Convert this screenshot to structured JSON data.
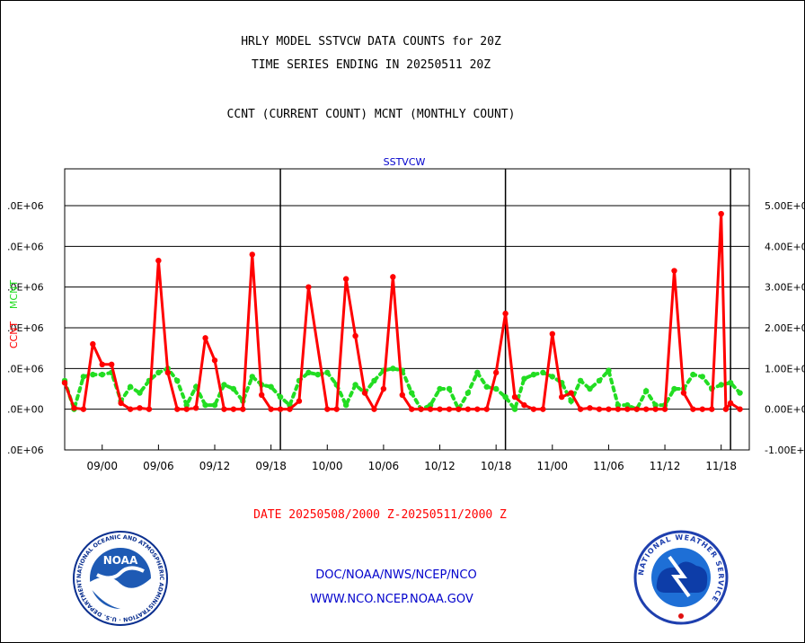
{
  "header": {
    "line1": "HRLY MODEL SSTVCW DATA COUNTS for 20Z",
    "line2": "TIME SERIES ENDING IN 20250511 20Z",
    "line3": "CCNT (CURRENT COUNT) MCNT (MONTHLY COUNT)"
  },
  "footer": {
    "date_range": "DATE 20250508/2000 Z-20250511/2000 Z",
    "org": "DOC/NOAA/NWS/NCEP/NCO",
    "url": "WWW.NCO.NCEP.NOAA.GOV"
  },
  "logos": {
    "noaa_text": "NOAA",
    "noaa_ring": "NATIONAL OCEANIC AND ATMOSPHERIC ADMINISTRATION · U.S. DEPARTMENT OF COMMERCE",
    "nws_ring": "NATIONAL WEATHER SERVICE"
  },
  "colors": {
    "ccnt": "#ff0000",
    "mcnt": "#22dd22",
    "title_blue": "#0000cc",
    "grid": "#000000"
  },
  "chart_data": {
    "type": "line",
    "title": "SSTVCW",
    "ylabel_left_1": "CCNT",
    "ylabel_left_2": "MCNT",
    "y_left_ticks": [
      ".0E+06",
      ".0E+06",
      ".0E+06",
      ".0E+06",
      ".0E+06",
      ".0E+00",
      ".0E+06"
    ],
    "y_right_ticks": [
      "5.00E+0",
      "4.00E+0",
      "3.00E+0",
      "2.00E+0",
      "1.00E+0",
      "0.00E+0",
      "-1.00E+0"
    ],
    "y_tick_values": [
      5000000,
      4000000,
      3000000,
      2000000,
      1000000,
      0,
      -1000000
    ],
    "ylim": [
      -1000000,
      5000000
    ],
    "grid": true,
    "x_ticks": [
      {
        "label": "09/00",
        "x": 3
      },
      {
        "label": "09/06",
        "x": 9
      },
      {
        "label": "09/12",
        "x": 15
      },
      {
        "label": "09/18",
        "x": 21
      },
      {
        "label": "10/00",
        "x": 27
      },
      {
        "label": "10/06",
        "x": 33
      },
      {
        "label": "10/12",
        "x": 39
      },
      {
        "label": "10/18",
        "x": 45
      },
      {
        "label": "11/00",
        "x": 51
      },
      {
        "label": "11/06",
        "x": 57
      },
      {
        "label": "11/12",
        "x": 63
      },
      {
        "label": "11/18",
        "x": 69
      }
    ],
    "day_boundaries_x": [
      22,
      46,
      70
    ],
    "xlim": [
      -1,
      72
    ],
    "series": [
      {
        "name": "CCNT",
        "x": [
          -1,
          0,
          1,
          2,
          3,
          4,
          5,
          6,
          7,
          8,
          9,
          10,
          11,
          12,
          13,
          14,
          15,
          16,
          17,
          18,
          19,
          20,
          21,
          22,
          23,
          24,
          25,
          27,
          28,
          29,
          30,
          31,
          32,
          33,
          34,
          35,
          36,
          37,
          38,
          39,
          40,
          41,
          42,
          43,
          44,
          45,
          46,
          47,
          48,
          49,
          50,
          51,
          52,
          53,
          54,
          55,
          56,
          57,
          58,
          59,
          60,
          61,
          62,
          63,
          64,
          65,
          66,
          67,
          68,
          69,
          69.5,
          70,
          71
        ],
        "y": [
          650000,
          30000,
          0,
          1600000,
          1100000,
          1100000,
          150000,
          0,
          30000,
          0,
          3650000,
          900000,
          0,
          0,
          30000,
          1750000,
          1200000,
          0,
          0,
          0,
          3800000,
          350000,
          0,
          0,
          0,
          200000,
          3000000,
          0,
          0,
          3200000,
          1800000,
          400000,
          0,
          500000,
          3250000,
          350000,
          0,
          0,
          0,
          0,
          0,
          0,
          0,
          0,
          0,
          900000,
          2350000,
          300000,
          100000,
          0,
          0,
          1850000,
          300000,
          400000,
          0,
          30000,
          0,
          0,
          0,
          0,
          0,
          0,
          0,
          0,
          3400000,
          400000,
          0,
          0,
          0,
          4800000,
          0,
          150000,
          0
        ]
      },
      {
        "name": "MCNT",
        "x": [
          -1,
          0,
          1,
          2,
          3,
          4,
          5,
          6,
          7,
          8,
          9,
          10,
          11,
          12,
          13,
          14,
          15,
          16,
          17,
          18,
          19,
          20,
          21,
          22,
          23,
          24,
          25,
          26,
          27,
          28,
          29,
          30,
          31,
          32,
          33,
          34,
          35,
          36,
          37,
          38,
          39,
          40,
          41,
          42,
          43,
          44,
          45,
          46,
          47,
          48,
          49,
          50,
          51,
          52,
          53,
          54,
          55,
          56,
          57,
          58,
          59,
          60,
          61,
          62,
          63,
          64,
          65,
          66,
          67,
          68,
          69,
          70,
          71
        ],
        "y": [
          700000,
          0,
          800000,
          850000,
          850000,
          900000,
          200000,
          550000,
          400000,
          700000,
          900000,
          1000000,
          700000,
          100000,
          550000,
          100000,
          100000,
          600000,
          500000,
          200000,
          800000,
          600000,
          550000,
          300000,
          100000,
          700000,
          900000,
          850000,
          900000,
          600000,
          100000,
          600000,
          400000,
          700000,
          950000,
          1000000,
          950000,
          400000,
          0,
          100000,
          500000,
          500000,
          0,
          400000,
          900000,
          550000,
          500000,
          300000,
          0,
          750000,
          850000,
          900000,
          800000,
          650000,
          200000,
          700000,
          500000,
          700000,
          950000,
          100000,
          100000,
          0,
          450000,
          100000,
          100000,
          500000,
          500000,
          850000,
          800000,
          500000,
          600000,
          650000,
          400000
        ]
      }
    ]
  }
}
